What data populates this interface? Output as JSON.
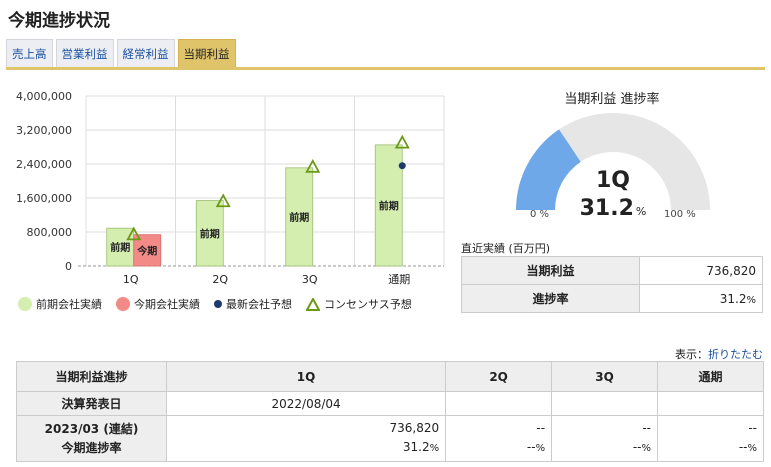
{
  "page": {
    "title": "今期進捗状況"
  },
  "tabs": [
    {
      "label": "売上高",
      "active": false
    },
    {
      "label": "営業利益",
      "active": false
    },
    {
      "label": "経常利益",
      "active": false
    },
    {
      "label": "当期利益",
      "active": true
    }
  ],
  "chart_data": {
    "type": "bar",
    "categories": [
      "1Q",
      "2Q",
      "3Q",
      "通期"
    ],
    "yticks": [
      "4,000,000",
      "3,200,000",
      "2,400,000",
      "1,600,000",
      "800,000",
      "0"
    ],
    "ylim": [
      0,
      4000000
    ],
    "series": [
      {
        "name": "前期会社実績",
        "values": [
          890000,
          1540000,
          2310000,
          2850000
        ],
        "label": "前期",
        "color": "#d4eeb0"
      },
      {
        "name": "今期会社実績",
        "values": [
          736820,
          null,
          null,
          null
        ],
        "label": "今期",
        "color": "#f28a88"
      },
      {
        "name": "最新会社予想",
        "values": [
          null,
          null,
          null,
          2360000
        ],
        "color": "#1c3a6b"
      },
      {
        "name": "コンセンサス予想",
        "values": [
          720000,
          1500000,
          2310000,
          2880000
        ],
        "color": "#6a9a16"
      }
    ]
  },
  "gauge": {
    "title": "当期利益 進捗率",
    "quarter": "1Q",
    "percent_value": "31.2",
    "percent_unit": "%",
    "progress": 0.312,
    "min_label": "0 %",
    "max_label": "100 %",
    "fill_color": "#6fa8e8",
    "track_color": "#e6e6e6"
  },
  "recent": {
    "label": "直近実績 (百万円)",
    "rows": [
      {
        "name": "当期利益",
        "value": "736,820",
        "unit": ""
      },
      {
        "name": "進捗率",
        "value": "31.2",
        "unit": "%"
      }
    ]
  },
  "toggle": {
    "prefix": "表示：",
    "link": "折りたたむ"
  },
  "progress_table": {
    "headers": [
      "当期利益進捗",
      "1Q",
      "2Q",
      "3Q",
      "通期"
    ],
    "announce_label": "決算発表日",
    "announce": [
      "2022/08/04",
      "",
      "",
      ""
    ],
    "period_label": "2023/03 (連結)",
    "period_sub": "今期進捗率",
    "values": [
      "736,820",
      "--",
      "--",
      "--"
    ],
    "rates": [
      "31.2",
      "--",
      "--",
      "--"
    ],
    "rate_unit": "%"
  }
}
